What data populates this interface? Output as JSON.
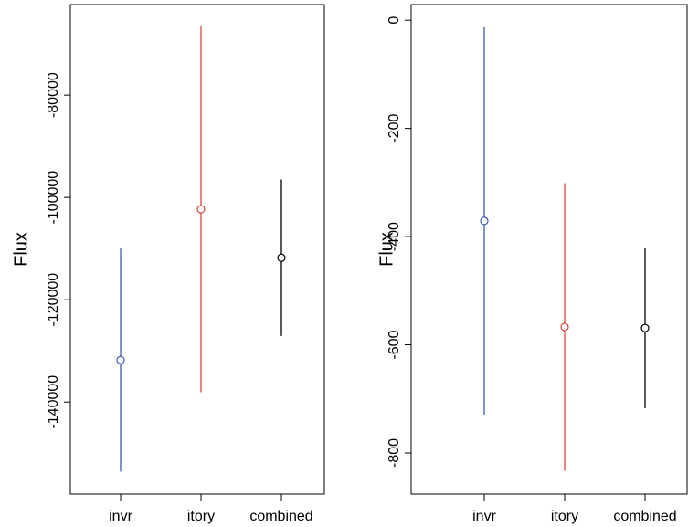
{
  "chart_data": [
    {
      "type": "errorbar",
      "ylabel": "Flux",
      "categories": [
        "invr",
        "itory",
        "combined"
      ],
      "values": [
        -131800,
        -102300,
        -111800
      ],
      "errors": [
        21800,
        35800,
        15300
      ],
      "colors": [
        "#3a5fad",
        "#d9453b",
        "#000000"
      ],
      "ylim": [
        -158000,
        -62300
      ],
      "yticks": [
        -80000,
        -100000,
        -120000,
        -140000
      ]
    },
    {
      "type": "errorbar",
      "ylabel": "Flux",
      "categories": [
        "invr",
        "itory",
        "combined"
      ],
      "values": [
        -371,
        -567,
        -569
      ],
      "errors": [
        358,
        266,
        148
      ],
      "colors": [
        "#3a5fad",
        "#d9453b",
        "#000000"
      ],
      "ylim": [
        -876,
        29
      ],
      "yticks": [
        0,
        -200,
        -400,
        -600,
        -800
      ]
    }
  ]
}
